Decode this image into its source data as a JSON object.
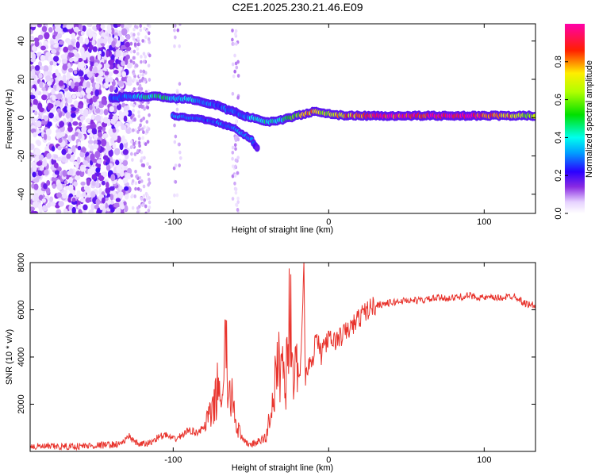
{
  "title": "C2E1.2025.230.21.46.E09",
  "colors": {
    "snr_line": "#e8332c",
    "axis": "#000000",
    "background": "#ffffff"
  },
  "chart_data": [
    {
      "type": "heatmap",
      "title": "C2E1.2025.230.21.46.E09",
      "xlabel": "Height of straight line (km)",
      "ylabel": "Frequency (Hz)",
      "xlim": [
        -192,
        133
      ],
      "ylim": [
        -50,
        49
      ],
      "xticks": [
        -100,
        0,
        100
      ],
      "yticks": [
        -40,
        -20,
        0,
        20,
        40
      ],
      "colormap": "rainbow (white-violet-blue-cyan-green-yellow-red-magenta)",
      "colorbar": {
        "label": "Normalized spectral amplitude",
        "range": [
          0,
          1
        ],
        "ticks": [
          0.0,
          0.2,
          0.4,
          0.6,
          0.8
        ]
      },
      "ridge": {
        "x": [
          -140,
          -130,
          -120,
          -110,
          -100,
          -95,
          -90,
          -85,
          -80,
          -75,
          -70,
          -65,
          -60,
          -55,
          -50,
          -45,
          -40,
          -35,
          -30,
          -25,
          -20,
          -15,
          -10,
          -5,
          0,
          10,
          20,
          40,
          60,
          80,
          100,
          120,
          133
        ],
        "y": [
          10,
          11,
          11,
          11,
          10,
          10,
          10,
          9,
          8,
          7,
          6,
          4,
          3,
          1,
          0,
          -1,
          -2,
          -2,
          -1,
          0,
          1,
          2,
          3,
          3,
          2,
          1,
          1,
          1,
          1,
          1,
          1,
          1,
          1
        ],
        "amplitude": [
          0.25,
          0.3,
          0.4,
          0.5,
          0.4,
          0.35,
          0.4,
          0.35,
          0.3,
          0.3,
          0.25,
          0.3,
          0.3,
          0.25,
          0.35,
          0.4,
          0.45,
          0.4,
          0.4,
          0.5,
          0.6,
          0.75,
          0.8,
          0.7,
          0.65,
          0.75,
          0.85,
          0.9,
          0.95,
          1.0,
          0.9,
          0.7,
          0.6
        ]
      },
      "secondary_branch": {
        "x": [
          -100,
          -90,
          -80,
          -70,
          -60,
          -55,
          -50,
          -45
        ],
        "y": [
          1,
          0,
          -1,
          -3,
          -6,
          -9,
          -11,
          -17
        ],
        "amplitude": [
          0.3,
          0.3,
          0.25,
          0.3,
          0.3,
          0.35,
          0.3,
          0.15
        ]
      },
      "noise_region": {
        "x_range": [
          -192,
          -128
        ],
        "amplitude": 0.15
      }
    },
    {
      "type": "line",
      "xlabel": "Height of straight line (km)",
      "ylabel": "SNR (10 * v/v)",
      "xlim": [
        -192,
        133
      ],
      "ylim": [
        0,
        8000
      ],
      "xticks": [
        -100,
        0,
        100
      ],
      "yticks": [
        2000,
        4000,
        6000,
        8000
      ],
      "series": [
        {
          "x": [
            -192,
            -170,
            -150,
            -135,
            -130,
            -128,
            -125,
            -120,
            -115,
            -110,
            -105,
            -100,
            -95,
            -90,
            -85,
            -80,
            -78,
            -75,
            -72,
            -70,
            -68,
            -66,
            -65,
            -64,
            -62,
            -60,
            -58,
            -55,
            -50,
            -45,
            -40,
            -38,
            -36,
            -35,
            -33,
            -30,
            -28,
            -25,
            -22,
            -20,
            -18,
            -16,
            -15,
            -13,
            -10,
            -8,
            -5,
            -3,
            0,
            5,
            10,
            15,
            20,
            25,
            30,
            40,
            50,
            60,
            70,
            80,
            90,
            100,
            110,
            120,
            125,
            130,
            133
          ],
          "y": [
            200,
            200,
            250,
            300,
            500,
            700,
            350,
            300,
            350,
            600,
            700,
            500,
            650,
            900,
            800,
            1000,
            1400,
            1500,
            2500,
            3000,
            1800,
            5400,
            2600,
            2000,
            2600,
            1400,
            900,
            400,
            300,
            400,
            600,
            1500,
            2000,
            2600,
            3500,
            4000,
            2500,
            6200,
            3000,
            3400,
            3600,
            8000,
            3200,
            3800,
            4000,
            5000,
            4000,
            4600,
            4700,
            4700,
            5000,
            5300,
            5700,
            6000,
            6200,
            6300,
            6400,
            6400,
            6500,
            6500,
            6600,
            6500,
            6500,
            6600,
            6300,
            6200,
            6200
          ]
        }
      ]
    }
  ]
}
